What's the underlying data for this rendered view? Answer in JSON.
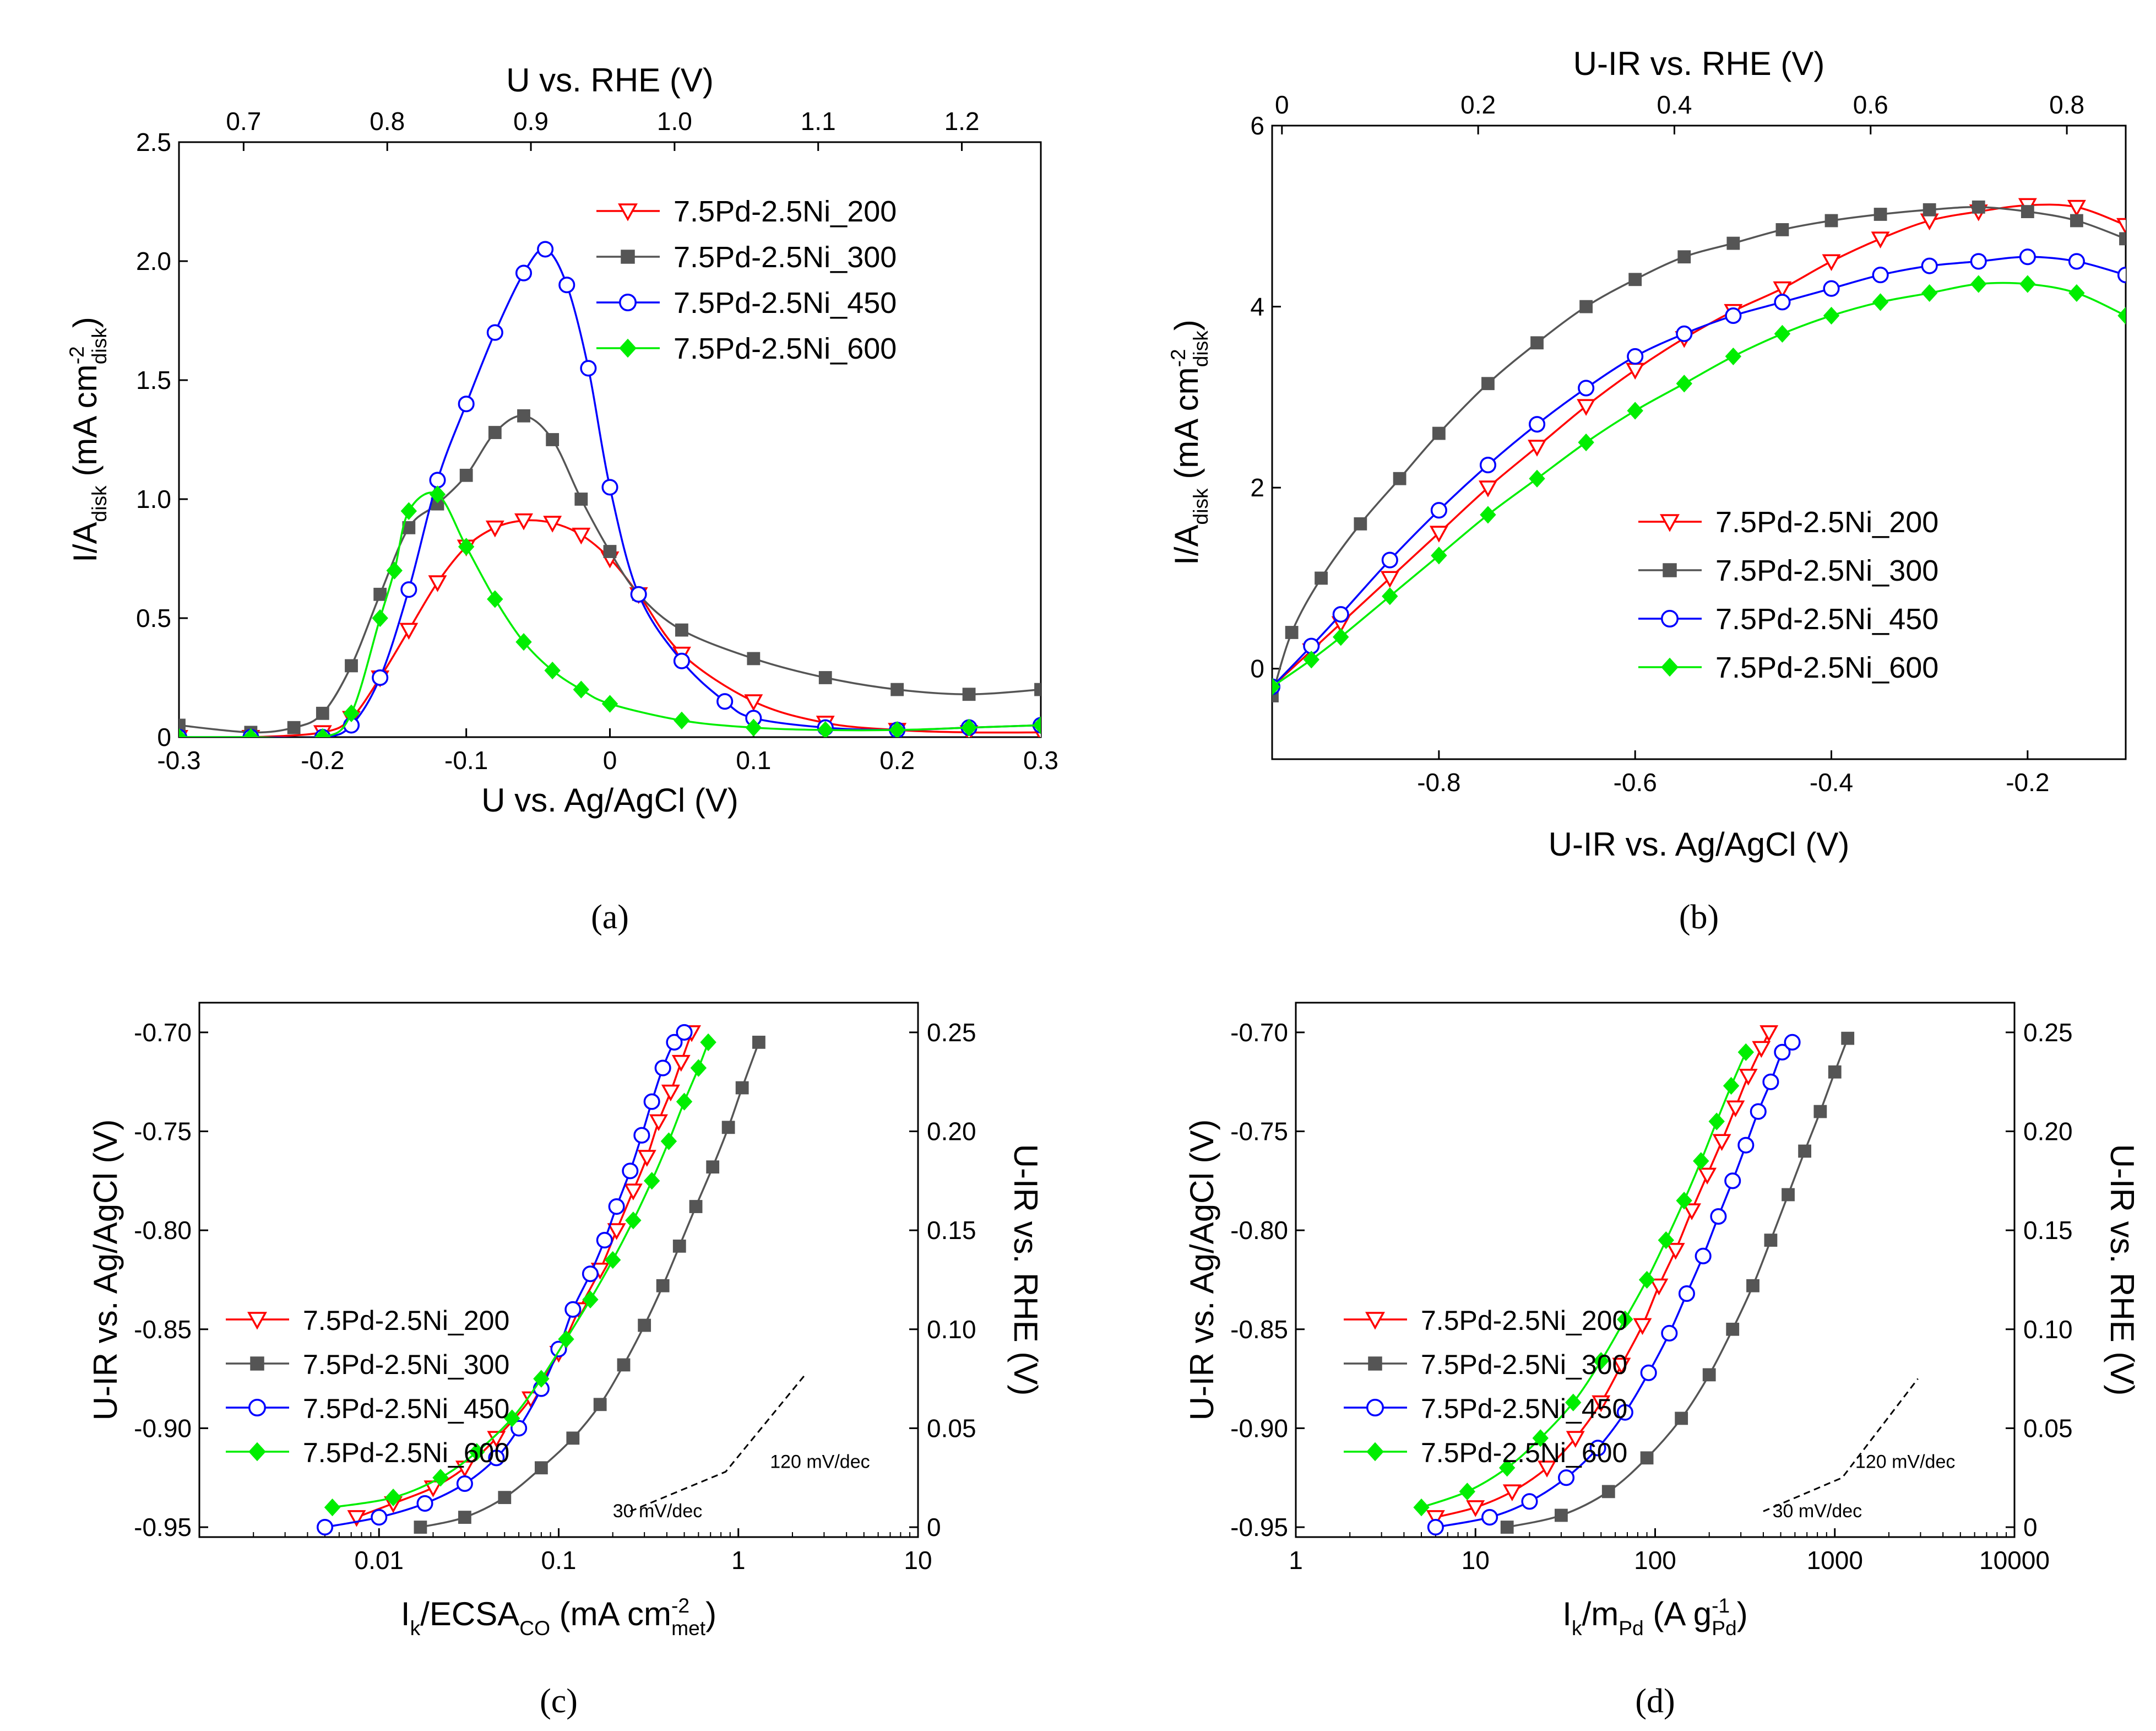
{
  "colors": {
    "s200": "#ff0000",
    "s300": "#555555",
    "s450": "#0000ff",
    "s600": "#00ee00",
    "axis": "#000000",
    "background": "#ffffff"
  },
  "chart_data": [
    {
      "id": "a",
      "type": "line",
      "panel_label": "(a)",
      "xlabel": "U vs. Ag/AgCl (V)",
      "ylabel": "I/A_disk (mA cm^-2_disk)",
      "top_xlabel": "U vs. RHE (V)",
      "xlim": [
        -0.3,
        0.3
      ],
      "ylim": [
        0,
        2.5
      ],
      "xticks": [
        "-0.3",
        "-0.2",
        "-0.1",
        "0",
        "0.1",
        "0.2",
        "0.3"
      ],
      "yticks": [
        "0",
        "0.5",
        "1.0",
        "1.5",
        "2.0",
        "2.5"
      ],
      "top_ticks": [
        "0.7",
        "0.8",
        "0.9",
        "1.0",
        "1.1",
        "1.2"
      ],
      "legend_position": "top-right",
      "series": [
        {
          "name": "7.5Pd-2.5Ni_200",
          "key": "s200",
          "marker": "triangle-down-open",
          "x": [
            -0.3,
            -0.25,
            -0.2,
            -0.18,
            -0.16,
            -0.14,
            -0.12,
            -0.1,
            -0.08,
            -0.06,
            -0.04,
            -0.02,
            0.0,
            0.02,
            0.05,
            0.1,
            0.15,
            0.2,
            0.25,
            0.3
          ],
          "y": [
            0.0,
            0.0,
            0.02,
            0.08,
            0.25,
            0.45,
            0.65,
            0.8,
            0.88,
            0.91,
            0.9,
            0.85,
            0.75,
            0.6,
            0.35,
            0.15,
            0.06,
            0.03,
            0.02,
            0.02
          ]
        },
        {
          "name": "7.5Pd-2.5Ni_300",
          "key": "s300",
          "marker": "square-filled",
          "x": [
            -0.3,
            -0.25,
            -0.22,
            -0.2,
            -0.18,
            -0.16,
            -0.14,
            -0.12,
            -0.1,
            -0.08,
            -0.06,
            -0.04,
            -0.02,
            0.0,
            0.02,
            0.05,
            0.1,
            0.15,
            0.2,
            0.25,
            0.3
          ],
          "y": [
            0.05,
            0.02,
            0.04,
            0.1,
            0.3,
            0.6,
            0.88,
            0.98,
            1.1,
            1.28,
            1.35,
            1.25,
            1.0,
            0.78,
            0.6,
            0.45,
            0.33,
            0.25,
            0.2,
            0.18,
            0.2
          ]
        },
        {
          "name": "7.5Pd-2.5Ni_450",
          "key": "s450",
          "marker": "circle-open",
          "x": [
            -0.3,
            -0.25,
            -0.2,
            -0.18,
            -0.16,
            -0.14,
            -0.12,
            -0.1,
            -0.08,
            -0.06,
            -0.045,
            -0.03,
            -0.015,
            0.0,
            0.02,
            0.05,
            0.08,
            0.1,
            0.15,
            0.2,
            0.25,
            0.3
          ],
          "y": [
            0.0,
            0.0,
            0.0,
            0.05,
            0.25,
            0.62,
            1.08,
            1.4,
            1.7,
            1.95,
            2.05,
            1.9,
            1.55,
            1.05,
            0.6,
            0.32,
            0.15,
            0.08,
            0.04,
            0.03,
            0.04,
            0.05
          ]
        },
        {
          "name": "7.5Pd-2.5Ni_600",
          "key": "s600",
          "marker": "diamond-filled",
          "x": [
            -0.3,
            -0.25,
            -0.2,
            -0.18,
            -0.16,
            -0.15,
            -0.14,
            -0.12,
            -0.1,
            -0.08,
            -0.06,
            -0.04,
            -0.02,
            0.0,
            0.05,
            0.1,
            0.15,
            0.2,
            0.25,
            0.3
          ],
          "y": [
            0.0,
            0.0,
            0.0,
            0.1,
            0.5,
            0.7,
            0.95,
            1.02,
            0.8,
            0.58,
            0.4,
            0.28,
            0.2,
            0.14,
            0.07,
            0.04,
            0.03,
            0.03,
            0.04,
            0.05
          ]
        }
      ]
    },
    {
      "id": "b",
      "type": "line",
      "panel_label": "(b)",
      "xlabel": "U-IR vs. Ag/AgCl (V)",
      "ylabel": "I/A_disk (mA cm^-2_disk)",
      "top_xlabel": "U-IR vs. RHE (V)",
      "xlim": [
        -0.97,
        -0.1
      ],
      "ylim": [
        -1,
        6
      ],
      "xticks": [
        "-0.8",
        "-0.6",
        "-0.4",
        "-0.2"
      ],
      "xtick_values": [
        -0.8,
        -0.6,
        -0.4,
        -0.2
      ],
      "yticks": [
        "0",
        "2",
        "4",
        "6"
      ],
      "ytick_values": [
        0,
        2,
        4,
        6
      ],
      "top_ticks": [
        "0",
        "0.2",
        "0.4",
        "0.6",
        "0.8"
      ],
      "top_tick_positions": [
        -0.96,
        -0.76,
        -0.56,
        -0.36,
        -0.16
      ],
      "legend_position": "bottom-right",
      "series": [
        {
          "name": "7.5Pd-2.5Ni_200",
          "key": "s200",
          "marker": "triangle-down-open",
          "x": [
            -0.97,
            -0.93,
            -0.9,
            -0.85,
            -0.8,
            -0.75,
            -0.7,
            -0.65,
            -0.6,
            -0.55,
            -0.5,
            -0.45,
            -0.4,
            -0.35,
            -0.3,
            -0.25,
            -0.2,
            -0.15,
            -0.1
          ],
          "y": [
            -0.2,
            0.2,
            0.5,
            1.0,
            1.5,
            2.0,
            2.45,
            2.9,
            3.3,
            3.65,
            3.95,
            4.2,
            4.5,
            4.75,
            4.95,
            5.05,
            5.12,
            5.1,
            4.9
          ]
        },
        {
          "name": "7.5Pd-2.5Ni_300",
          "key": "s300",
          "marker": "square-filled",
          "x": [
            -0.97,
            -0.95,
            -0.92,
            -0.88,
            -0.84,
            -0.8,
            -0.75,
            -0.7,
            -0.65,
            -0.6,
            -0.55,
            -0.5,
            -0.45,
            -0.4,
            -0.35,
            -0.3,
            -0.25,
            -0.2,
            -0.15,
            -0.1
          ],
          "y": [
            -0.3,
            0.4,
            1.0,
            1.6,
            2.1,
            2.6,
            3.15,
            3.6,
            4.0,
            4.3,
            4.55,
            4.7,
            4.85,
            4.95,
            5.02,
            5.07,
            5.1,
            5.05,
            4.95,
            4.75
          ]
        },
        {
          "name": "7.5Pd-2.5Ni_450",
          "key": "s450",
          "marker": "circle-open",
          "x": [
            -0.97,
            -0.93,
            -0.9,
            -0.85,
            -0.8,
            -0.75,
            -0.7,
            -0.65,
            -0.6,
            -0.55,
            -0.5,
            -0.45,
            -0.4,
            -0.35,
            -0.3,
            -0.25,
            -0.2,
            -0.15,
            -0.1
          ],
          "y": [
            -0.2,
            0.25,
            0.6,
            1.2,
            1.75,
            2.25,
            2.7,
            3.1,
            3.45,
            3.7,
            3.9,
            4.05,
            4.2,
            4.35,
            4.45,
            4.5,
            4.55,
            4.5,
            4.35
          ]
        },
        {
          "name": "7.5Pd-2.5Ni_600",
          "key": "s600",
          "marker": "diamond-filled",
          "x": [
            -0.97,
            -0.93,
            -0.9,
            -0.85,
            -0.8,
            -0.75,
            -0.7,
            -0.65,
            -0.6,
            -0.55,
            -0.5,
            -0.45,
            -0.4,
            -0.35,
            -0.3,
            -0.25,
            -0.2,
            -0.15,
            -0.1
          ],
          "y": [
            -0.2,
            0.1,
            0.35,
            0.8,
            1.25,
            1.7,
            2.1,
            2.5,
            2.85,
            3.15,
            3.45,
            3.7,
            3.9,
            4.05,
            4.15,
            4.25,
            4.25,
            4.15,
            3.9
          ]
        }
      ]
    },
    {
      "id": "c",
      "type": "line",
      "panel_label": "(c)",
      "xscale": "log",
      "xlabel": "I_k/ECSA_CO (mA cm^-2_met)",
      "ylabel": "U-IR vs. Ag/AgCl (V)",
      "right_ylabel": "U-IR vs. RHE (V)",
      "xlim": [
        0.001,
        10
      ],
      "ylim": [
        -0.955,
        -0.685
      ],
      "xticks": [
        "0.01",
        "0.1",
        "1",
        "10"
      ],
      "xtick_values": [
        0.01,
        0.1,
        1,
        10
      ],
      "yticks": [
        "-0.95",
        "-0.90",
        "-0.85",
        "-0.80",
        "-0.75",
        "-0.70"
      ],
      "ytick_values": [
        -0.95,
        -0.9,
        -0.85,
        -0.8,
        -0.75,
        -0.7
      ],
      "right_ticks": [
        "0",
        "0.05",
        "0.10",
        "0.15",
        "0.20",
        "0.25"
      ],
      "right_tick_values": [
        -0.95,
        -0.9,
        -0.85,
        -0.8,
        -0.75,
        -0.7
      ],
      "annotations": [
        {
          "text": "30 mV/dec",
          "x": 0.2,
          "y": -0.945
        },
        {
          "text": "120 mV/dec",
          "x": 1.5,
          "y": -0.92
        }
      ],
      "slope_line": {
        "x": [
          0.25,
          0.85,
          2.4
        ],
        "y": [
          -0.942,
          -0.922,
          -0.872
        ]
      },
      "legend_position": "bottom-left",
      "series": [
        {
          "name": "7.5Pd-2.5Ni_200",
          "key": "s200",
          "marker": "triangle-down-open",
          "x": [
            0.0075,
            0.012,
            0.02,
            0.03,
            0.045,
            0.07,
            0.1,
            0.13,
            0.17,
            0.21,
            0.26,
            0.31,
            0.36,
            0.42,
            0.48,
            0.55
          ],
          "y": [
            -0.945,
            -0.938,
            -0.93,
            -0.92,
            -0.905,
            -0.885,
            -0.862,
            -0.84,
            -0.82,
            -0.8,
            -0.78,
            -0.763,
            -0.745,
            -0.73,
            -0.715,
            -0.7
          ]
        },
        {
          "name": "7.5Pd-2.5Ni_300",
          "key": "s300",
          "marker": "square-filled",
          "x": [
            0.017,
            0.03,
            0.05,
            0.08,
            0.12,
            0.17,
            0.23,
            0.3,
            0.38,
            0.47,
            0.58,
            0.72,
            0.88,
            1.05,
            1.3
          ],
          "y": [
            -0.95,
            -0.945,
            -0.935,
            -0.92,
            -0.905,
            -0.888,
            -0.868,
            -0.848,
            -0.828,
            -0.808,
            -0.788,
            -0.768,
            -0.748,
            -0.728,
            -0.705
          ]
        },
        {
          "name": "7.5Pd-2.5Ni_450",
          "key": "s450",
          "marker": "circle-open",
          "x": [
            0.005,
            0.01,
            0.018,
            0.03,
            0.045,
            0.06,
            0.08,
            0.1,
            0.12,
            0.15,
            0.18,
            0.21,
            0.25,
            0.29,
            0.33,
            0.38,
            0.44,
            0.5
          ],
          "y": [
            -0.95,
            -0.945,
            -0.938,
            -0.928,
            -0.915,
            -0.9,
            -0.88,
            -0.86,
            -0.84,
            -0.822,
            -0.805,
            -0.788,
            -0.77,
            -0.752,
            -0.735,
            -0.718,
            -0.705,
            -0.7
          ]
        },
        {
          "name": "7.5Pd-2.5Ni_600",
          "key": "s600",
          "marker": "diamond-filled",
          "x": [
            0.0055,
            0.012,
            0.022,
            0.035,
            0.055,
            0.08,
            0.11,
            0.15,
            0.2,
            0.26,
            0.33,
            0.41,
            0.5,
            0.6,
            0.68
          ],
          "y": [
            -0.94,
            -0.935,
            -0.925,
            -0.912,
            -0.895,
            -0.875,
            -0.855,
            -0.835,
            -0.815,
            -0.795,
            -0.775,
            -0.755,
            -0.735,
            -0.718,
            -0.705
          ]
        }
      ]
    },
    {
      "id": "d",
      "type": "line",
      "panel_label": "(d)",
      "xscale": "log",
      "xlabel": "I_k/m_Pd (A g^-1_Pd)",
      "ylabel": "U-IR vs. Ag/AgCl (V)",
      "right_ylabel": "U-IR vs. RHE (V)",
      "xlim": [
        1,
        10000
      ],
      "ylim": [
        -0.955,
        -0.685
      ],
      "xticks": [
        "1",
        "10",
        "100",
        "1000",
        "10000"
      ],
      "xtick_values": [
        1,
        10,
        100,
        1000,
        10000
      ],
      "yticks": [
        "-0.95",
        "-0.90",
        "-0.85",
        "-0.80",
        "-0.75",
        "-0.70"
      ],
      "ytick_values": [
        -0.95,
        -0.9,
        -0.85,
        -0.8,
        -0.75,
        -0.7
      ],
      "right_ticks": [
        "0",
        "0.05",
        "0.10",
        "0.15",
        "0.20",
        "0.25"
      ],
      "right_tick_values": [
        -0.95,
        -0.9,
        -0.85,
        -0.8,
        -0.75,
        -0.7
      ],
      "annotations": [
        {
          "text": "30 mV/dec",
          "x": 450,
          "y": -0.945
        },
        {
          "text": "120 mV/dec",
          "x": 1300,
          "y": -0.92
        }
      ],
      "slope_line": {
        "x": [
          400,
          1100,
          2900
        ],
        "y": [
          -0.942,
          -0.925,
          -0.875
        ]
      },
      "legend_position": "bottom-left",
      "series": [
        {
          "name": "7.5Pd-2.5Ni_200",
          "key": "s200",
          "marker": "triangle-down-open",
          "x": [
            6,
            10,
            16,
            25,
            36,
            50,
            65,
            85,
            105,
            130,
            160,
            195,
            235,
            280,
            330,
            390,
            430
          ],
          "y": [
            -0.945,
            -0.94,
            -0.932,
            -0.92,
            -0.905,
            -0.887,
            -0.868,
            -0.848,
            -0.828,
            -0.81,
            -0.79,
            -0.772,
            -0.755,
            -0.738,
            -0.722,
            -0.708,
            -0.7
          ]
        },
        {
          "name": "7.5Pd-2.5Ni_300",
          "key": "s300",
          "marker": "square-filled",
          "x": [
            15,
            30,
            55,
            90,
            140,
            200,
            270,
            350,
            440,
            550,
            680,
            830,
            1000,
            1180
          ],
          "y": [
            -0.95,
            -0.944,
            -0.932,
            -0.915,
            -0.895,
            -0.873,
            -0.85,
            -0.828,
            -0.805,
            -0.782,
            -0.76,
            -0.74,
            -0.72,
            -0.703
          ]
        },
        {
          "name": "7.5Pd-2.5Ni_450",
          "key": "s450",
          "marker": "circle-open",
          "x": [
            6,
            12,
            20,
            32,
            48,
            68,
            92,
            120,
            150,
            185,
            225,
            270,
            320,
            375,
            440,
            510,
            580
          ],
          "y": [
            -0.95,
            -0.945,
            -0.937,
            -0.925,
            -0.91,
            -0.892,
            -0.872,
            -0.852,
            -0.832,
            -0.813,
            -0.793,
            -0.775,
            -0.757,
            -0.74,
            -0.725,
            -0.71,
            -0.705
          ]
        },
        {
          "name": "7.5Pd-2.5Ni_600",
          "key": "s600",
          "marker": "diamond-filled",
          "x": [
            5,
            9,
            15,
            23,
            35,
            50,
            68,
            90,
            115,
            145,
            180,
            220,
            265,
            320
          ],
          "y": [
            -0.94,
            -0.932,
            -0.92,
            -0.905,
            -0.887,
            -0.866,
            -0.845,
            -0.825,
            -0.805,
            -0.785,
            -0.765,
            -0.745,
            -0.727,
            -0.71
          ]
        }
      ]
    }
  ]
}
